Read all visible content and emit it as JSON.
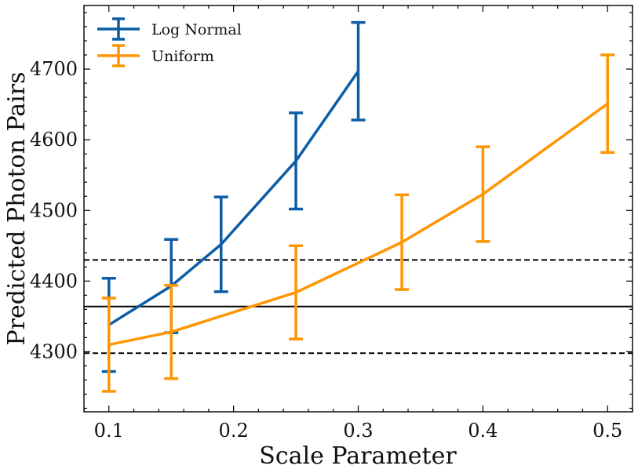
{
  "chart_data": {
    "type": "line",
    "xlabel": "Scale Parameter",
    "ylabel": "Predicted Photon Pairs",
    "xlim": [
      0.08,
      0.52
    ],
    "ylim": [
      4215,
      4790
    ],
    "x_ticks": [
      0.1,
      0.2,
      0.3,
      0.4,
      0.5
    ],
    "y_ticks": [
      4300,
      4400,
      4500,
      4600,
      4700
    ],
    "x_tick_labels": [
      "0.1",
      "0.2",
      "0.3",
      "0.4",
      "0.5"
    ],
    "y_tick_labels": [
      "4300",
      "4400",
      "4500",
      "4600",
      "4700"
    ],
    "series": [
      {
        "name": "Log Normal",
        "color": "#0c5da5",
        "x": [
          0.1,
          0.15,
          0.19,
          0.25,
          0.3
        ],
        "values": [
          4338,
          4393,
          4452,
          4570,
          4697
        ],
        "yerr": [
          66,
          66,
          67,
          68,
          69
        ]
      },
      {
        "name": "Uniform",
        "color": "#ff9500",
        "x": [
          0.1,
          0.15,
          0.25,
          0.335,
          0.4,
          0.5
        ],
        "values": [
          4310,
          4328,
          4384,
          4455,
          4523,
          4651
        ],
        "yerr": [
          66,
          66,
          66,
          67,
          67,
          69
        ]
      }
    ],
    "reference_lines": [
      {
        "y": 4364,
        "style": "solid",
        "color": "#000000"
      },
      {
        "y": 4430,
        "style": "dashed",
        "color": "#000000"
      },
      {
        "y": 4298,
        "style": "dashed",
        "color": "#000000"
      }
    ],
    "legend_position": "top-left",
    "grid": false
  }
}
